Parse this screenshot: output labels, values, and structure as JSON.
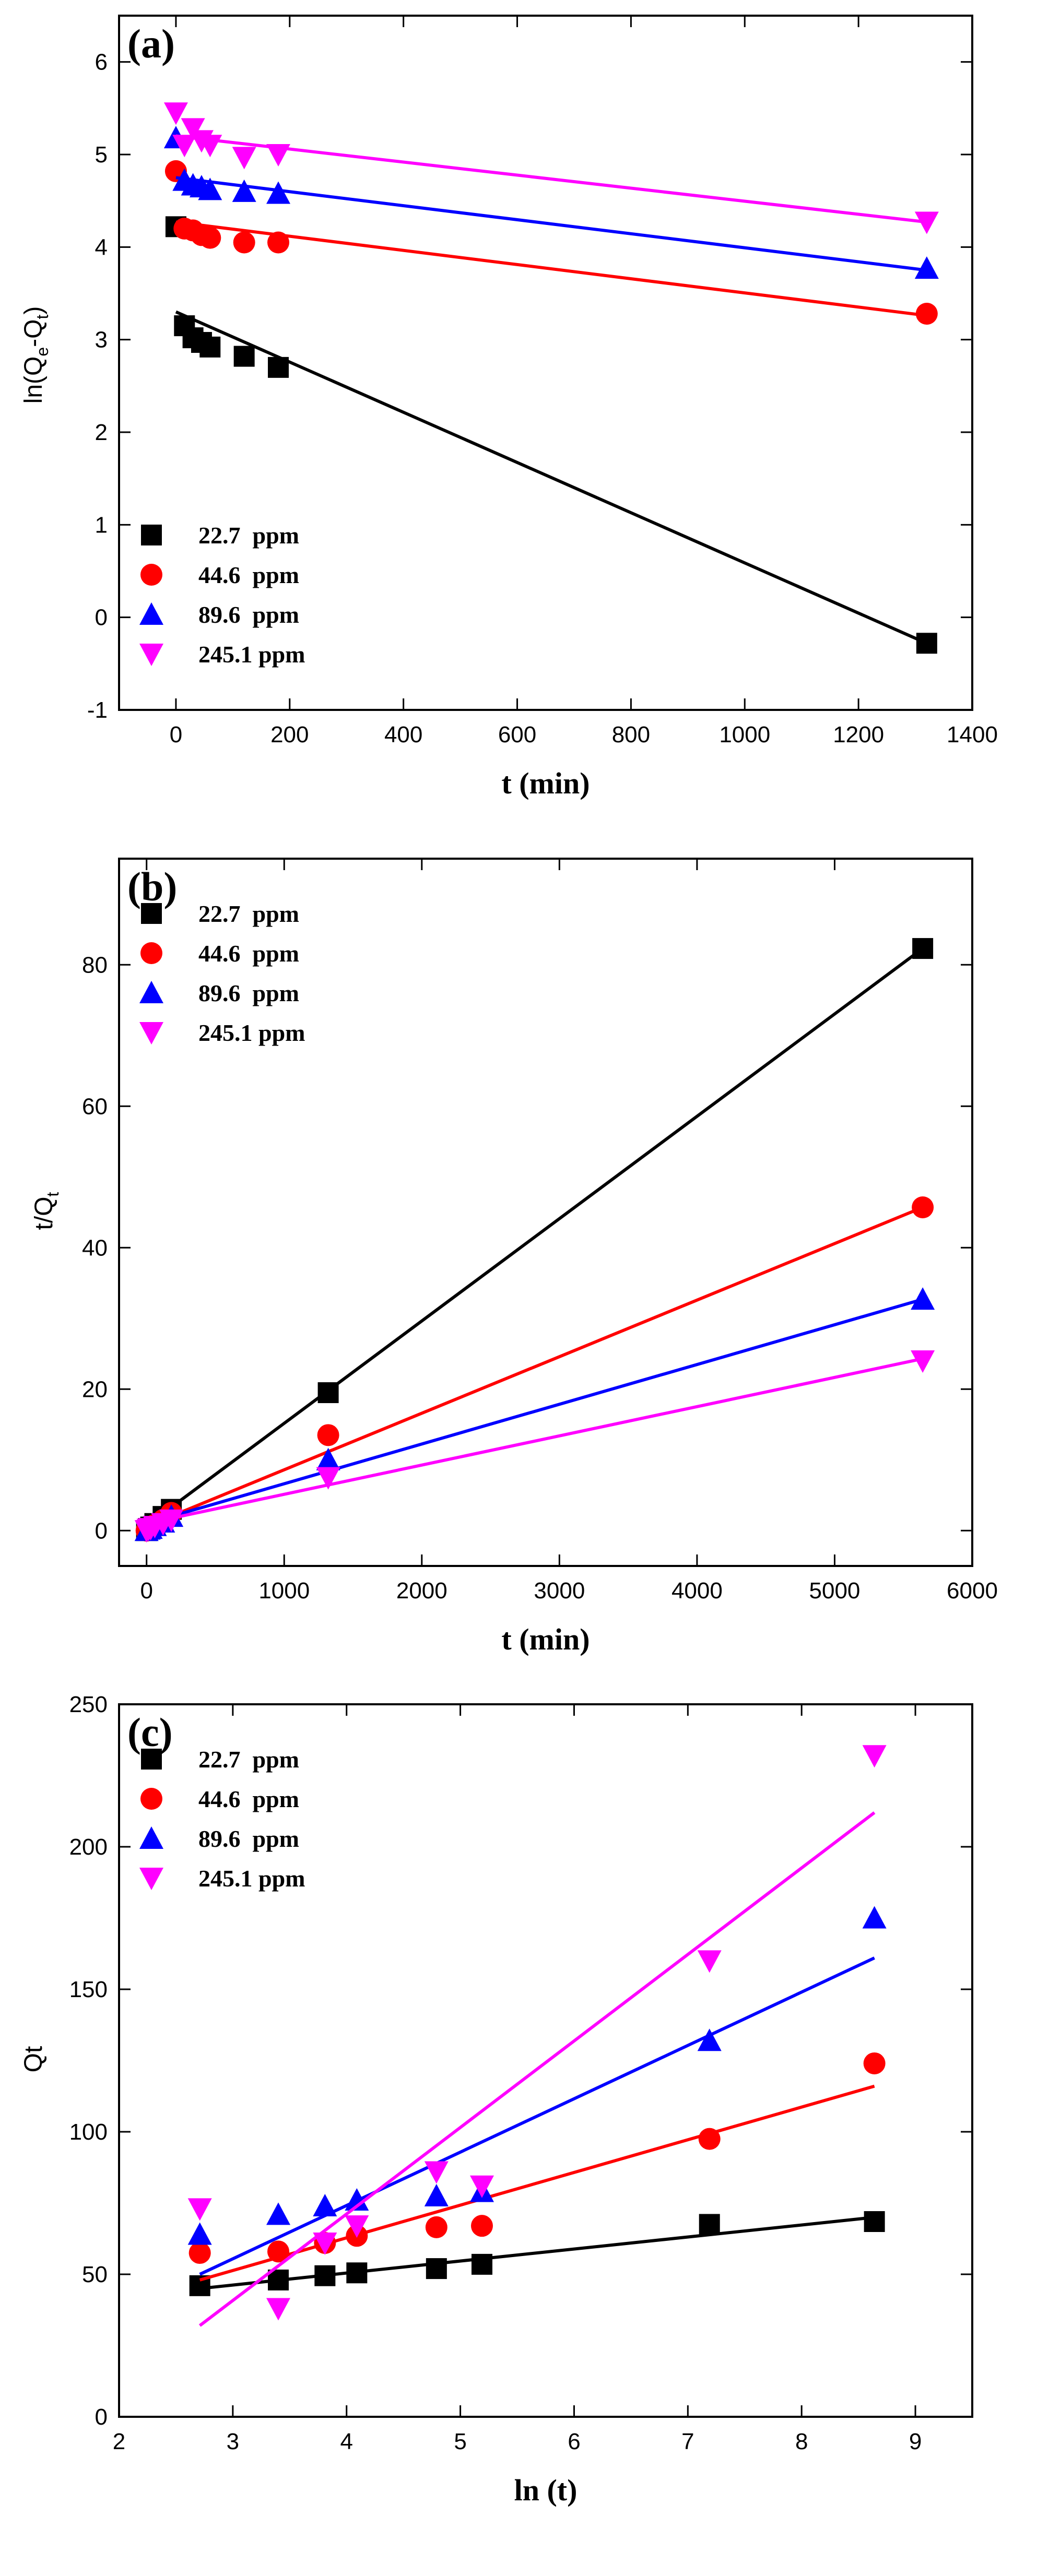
{
  "chart_data": [
    {
      "panel": "(a)",
      "type": "scatter",
      "xlabel": "t (min)",
      "ylabel": {
        "main": "ln(Q",
        "sub1": "e",
        "mid": "-Q",
        "sub2": "t",
        "end": ")"
      },
      "xlim": [
        -100,
        1400
      ],
      "ylim": [
        -1,
        6.5
      ],
      "xticks": [
        0,
        200,
        400,
        600,
        800,
        1000,
        1200,
        1400
      ],
      "yticks": [
        -1,
        0,
        1,
        2,
        3,
        4,
        5,
        6
      ],
      "legend_position": "bottom-left",
      "series": [
        {
          "name": "22.7  ppm",
          "color": "#000000",
          "marker": "square",
          "points": [
            [
              0,
              4.22
            ],
            [
              15,
              3.15
            ],
            [
              30,
              3.02
            ],
            [
              45,
              2.97
            ],
            [
              60,
              2.92
            ],
            [
              120,
              2.82
            ],
            [
              180,
              2.7
            ],
            [
              1320,
              -0.28
            ]
          ],
          "fit": [
            [
              0,
              3.3
            ],
            [
              1320,
              -0.28
            ]
          ]
        },
        {
          "name": "44.6  ppm",
          "color": "#ff0000",
          "marker": "circle",
          "points": [
            [
              0,
              4.82
            ],
            [
              15,
              4.2
            ],
            [
              30,
              4.18
            ],
            [
              45,
              4.13
            ],
            [
              60,
              4.1
            ],
            [
              120,
              4.05
            ],
            [
              180,
              4.05
            ],
            [
              1320,
              3.28
            ]
          ],
          "fit": [
            [
              0,
              4.27
            ],
            [
              1320,
              3.26
            ]
          ]
        },
        {
          "name": "89.6  ppm",
          "color": "#0000ff",
          "marker": "triangle-up",
          "points": [
            [
              0,
              5.18
            ],
            [
              15,
              4.72
            ],
            [
              30,
              4.67
            ],
            [
              45,
              4.65
            ],
            [
              60,
              4.62
            ],
            [
              120,
              4.6
            ],
            [
              180,
              4.58
            ],
            [
              1320,
              3.77
            ]
          ],
          "fit": [
            [
              0,
              4.75
            ],
            [
              1320,
              3.75
            ]
          ]
        },
        {
          "name": "245.1 ppm",
          "color": "#ff00ff",
          "marker": "triangle-down",
          "points": [
            [
              0,
              5.45
            ],
            [
              15,
              5.1
            ],
            [
              30,
              5.28
            ],
            [
              45,
              5.15
            ],
            [
              60,
              5.1
            ],
            [
              120,
              4.97
            ],
            [
              180,
              5.0
            ],
            [
              1320,
              4.27
            ]
          ],
          "fit": [
            [
              0,
              5.2
            ],
            [
              1320,
              4.27
            ]
          ]
        }
      ]
    },
    {
      "panel": "(b)",
      "type": "scatter",
      "xlabel": "t (min)",
      "ylabel": {
        "main": "t/Q",
        "sub1": "t"
      },
      "xlim": [
        -200,
        6000
      ],
      "ylim": [
        -5,
        95
      ],
      "xticks": [
        0,
        1000,
        2000,
        3000,
        4000,
        5000,
        6000
      ],
      "yticks": [
        0,
        20,
        40,
        60,
        80
      ],
      "legend_position": "top-left",
      "series": [
        {
          "name": "22.7  ppm",
          "color": "#000000",
          "marker": "square",
          "points": [
            [
              0,
              0
            ],
            [
              15,
              0.3
            ],
            [
              30,
              0.5
            ],
            [
              60,
              1.0
            ],
            [
              120,
              2.0
            ],
            [
              180,
              3.0
            ],
            [
              1320,
              19.5
            ],
            [
              5640,
              82.3
            ]
          ],
          "fit": [
            [
              0,
              0.7
            ],
            [
              5640,
              82.3
            ]
          ]
        },
        {
          "name": "44.6  ppm",
          "color": "#ff0000",
          "marker": "circle",
          "points": [
            [
              0,
              0
            ],
            [
              15,
              0.2
            ],
            [
              30,
              0.4
            ],
            [
              60,
              0.8
            ],
            [
              120,
              1.5
            ],
            [
              180,
              2.5
            ],
            [
              1320,
              13.5
            ],
            [
              5640,
              45.7
            ]
          ],
          "fit": [
            [
              0,
              0.6
            ],
            [
              5640,
              45.7
            ]
          ]
        },
        {
          "name": "89.6  ppm",
          "color": "#0000ff",
          "marker": "triangle-up",
          "points": [
            [
              0,
              0
            ],
            [
              15,
              0.2
            ],
            [
              30,
              0.3
            ],
            [
              60,
              0.7
            ],
            [
              120,
              1.2
            ],
            [
              180,
              2.0
            ],
            [
              1320,
              10.0
            ],
            [
              5640,
              32.7
            ]
          ],
          "fit": [
            [
              0,
              1.0
            ],
            [
              5640,
              32.7
            ]
          ]
        },
        {
          "name": "245.1 ppm",
          "color": "#ff00ff",
          "marker": "triangle-down",
          "points": [
            [
              0,
              0
            ],
            [
              15,
              0.2
            ],
            [
              30,
              0.3
            ],
            [
              60,
              0.6
            ],
            [
              120,
              1.0
            ],
            [
              180,
              1.5
            ],
            [
              1320,
              7.5
            ],
            [
              5640,
              24.0
            ]
          ],
          "fit": [
            [
              0,
              1.0
            ],
            [
              5640,
              24.3
            ]
          ]
        }
      ]
    },
    {
      "panel": "(c)",
      "type": "scatter",
      "xlabel": "ln (t)",
      "ylabel": {
        "main": "Qt"
      },
      "xlim": [
        2,
        9.5
      ],
      "ylim": [
        0,
        250
      ],
      "xticks": [
        2,
        3,
        4,
        5,
        6,
        7,
        8,
        9
      ],
      "yticks": [
        0,
        50,
        100,
        150,
        200,
        250
      ],
      "legend_position": "top-left",
      "series": [
        {
          "name": "22.7  ppm",
          "color": "#000000",
          "marker": "square",
          "points": [
            [
              2.71,
              46
            ],
            [
              3.4,
              48
            ],
            [
              3.81,
              49.5
            ],
            [
              4.09,
              50.5
            ],
            [
              4.79,
              52
            ],
            [
              5.19,
              53.5
            ],
            [
              7.19,
              67.5
            ],
            [
              8.64,
              68.5
            ]
          ],
          "fit": [
            [
              2.71,
              45
            ],
            [
              8.64,
              70
            ]
          ]
        },
        {
          "name": "44.6  ppm",
          "color": "#ff0000",
          "marker": "circle",
          "points": [
            [
              2.71,
              57.5
            ],
            [
              3.4,
              58
            ],
            [
              3.81,
              61
            ],
            [
              4.09,
              63.5
            ],
            [
              4.79,
              66.5
            ],
            [
              5.19,
              67
            ],
            [
              7.19,
              97.5
            ],
            [
              8.64,
              124
            ]
          ],
          "fit": [
            [
              2.71,
              48
            ],
            [
              8.64,
              116
            ]
          ]
        },
        {
          "name": "89.6  ppm",
          "color": "#0000ff",
          "marker": "triangle-up",
          "points": [
            [
              2.71,
              64
            ],
            [
              3.4,
              71
            ],
            [
              3.81,
              74
            ],
            [
              4.09,
              76
            ],
            [
              4.79,
              77.5
            ],
            [
              5.19,
              79
            ],
            [
              7.19,
              132
            ],
            [
              8.64,
              175
            ]
          ],
          "fit": [
            [
              2.71,
              50
            ],
            [
              8.64,
              161
            ]
          ]
        },
        {
          "name": "245.1 ppm",
          "color": "#ff00ff",
          "marker": "triangle-down",
          "points": [
            [
              2.71,
              73
            ],
            [
              3.4,
              38
            ],
            [
              3.81,
              61
            ],
            [
              4.09,
              67
            ],
            [
              4.79,
              86
            ],
            [
              5.19,
              81
            ],
            [
              7.19,
              160
            ],
            [
              8.64,
              232
            ]
          ],
          "fit": [
            [
              2.71,
              32
            ],
            [
              8.64,
              212
            ]
          ]
        }
      ]
    }
  ]
}
